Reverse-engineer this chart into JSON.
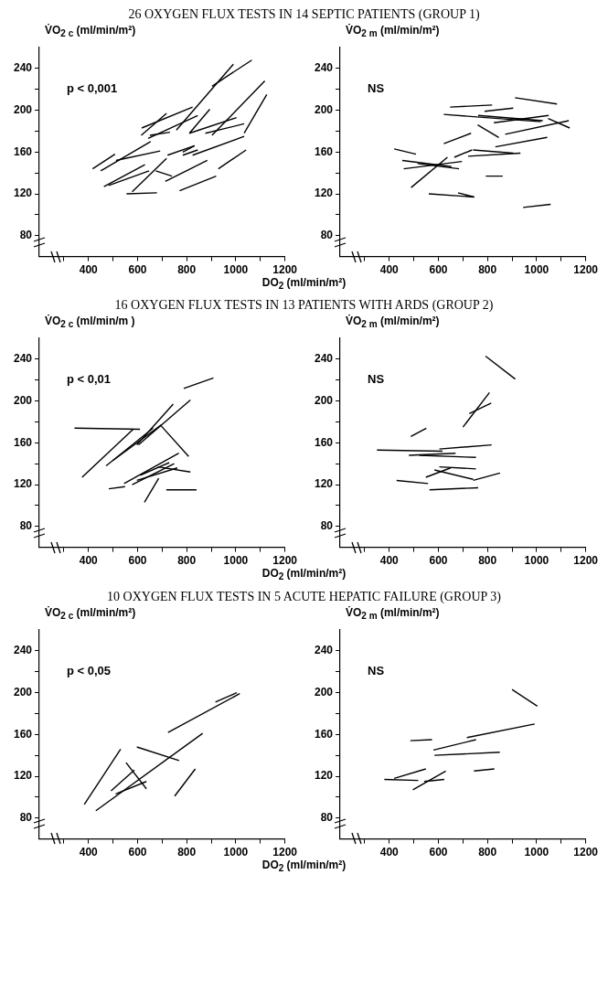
{
  "chart_data": [
    {
      "type": "line",
      "title": "26 OXYGEN FLUX TESTS IN 14 SEPTIC PATIENTS (GROUP 1)",
      "xlabel": "DO$_{2}$ (ml/min/m²)",
      "ylabel": "V̇O$_{2 c}$ (ml/min/m²)",
      "annotations": [
        "p < 0,001"
      ],
      "xlim": [
        200,
        1200
      ],
      "ylim": [
        60,
        260
      ],
      "xticks": [
        {
          "value": 300,
          "label": null
        },
        400,
        {
          "value": 500,
          "label": null
        },
        600,
        {
          "value": 700,
          "label": null
        },
        800,
        {
          "value": 900,
          "label": null
        },
        1000,
        {
          "value": 1100,
          "label": null
        },
        1200
      ],
      "yticks": [
        80,
        {
          "value": 100,
          "label": null
        },
        120,
        {
          "value": 140,
          "label": null
        },
        160,
        {
          "value": 180,
          "label": null
        },
        200,
        {
          "value": 220,
          "label": null
        },
        240
      ],
      "grid": false,
      "marker": "none",
      "series": [
        {
          "color": "#000000",
          "x": [
            417,
            508
          ],
          "values": [
            144,
            158
          ]
        },
        {
          "color": "#000000",
          "x": [
            450,
            653
          ],
          "values": [
            142,
            170
          ]
        },
        {
          "color": "#000000",
          "x": [
            512,
            692
          ],
          "values": [
            152,
            161
          ]
        },
        {
          "color": "#000000",
          "x": [
            463,
            630
          ],
          "values": [
            127,
            148
          ]
        },
        {
          "color": "#000000",
          "x": [
            482,
            647
          ],
          "values": [
            128,
            142
          ]
        },
        {
          "color": "#000000",
          "x": [
            555,
            679
          ],
          "values": [
            120,
            121
          ]
        },
        {
          "color": "#000000",
          "x": [
            578,
            718
          ],
          "values": [
            122,
            154
          ]
        },
        {
          "color": "#000000",
          "x": [
            674,
            740
          ],
          "values": [
            142,
            137
          ]
        },
        {
          "color": "#000000",
          "x": [
            713,
            884
          ],
          "values": [
            132,
            152
          ]
        },
        {
          "color": "#000000",
          "x": [
            771,
            920
          ],
          "values": [
            123,
            137
          ]
        },
        {
          "color": "#000000",
          "x": [
            929,
            1042
          ],
          "values": [
            144,
            162
          ]
        },
        {
          "color": "#000000",
          "x": [
            722,
            832
          ],
          "values": [
            157,
            166
          ]
        },
        {
          "color": "#000000",
          "x": [
            784,
            845
          ],
          "values": [
            157,
            162
          ]
        },
        {
          "color": "#000000",
          "x": [
            824,
            1034
          ],
          "values": [
            157,
            175
          ]
        },
        {
          "color": "#000000",
          "x": [
            615,
            718
          ],
          "values": [
            176,
            197
          ]
        },
        {
          "color": "#000000",
          "x": [
            617,
            824
          ],
          "values": [
            183,
            203
          ]
        },
        {
          "color": "#000000",
          "x": [
            650,
            732
          ],
          "values": [
            176,
            179
          ]
        },
        {
          "color": "#000000",
          "x": [
            643,
            845
          ],
          "values": [
            173,
            195
          ]
        },
        {
          "color": "#000000",
          "x": [
            758,
            990
          ],
          "values": [
            181,
            244
          ]
        },
        {
          "color": "#000000",
          "x": [
            903,
            1065
          ],
          "values": [
            223,
            248
          ]
        },
        {
          "color": "#000000",
          "x": [
            811,
            894
          ],
          "values": [
            178,
            201
          ]
        },
        {
          "color": "#000000",
          "x": [
            811,
            1003
          ],
          "values": [
            178,
            193
          ]
        },
        {
          "color": "#000000",
          "x": [
            903,
            1118
          ],
          "values": [
            176,
            228
          ]
        },
        {
          "color": "#000000",
          "x": [
            876,
            1034
          ],
          "values": [
            178,
            187
          ]
        },
        {
          "color": "#000000",
          "x": [
            1034,
            1126
          ],
          "values": [
            178,
            215
          ]
        },
        {
          "color": "#000000",
          "x": [
            784,
            832
          ],
          "values": [
            160,
            166
          ]
        }
      ]
    },
    {
      "type": "line",
      "ylabel": "V̇O$_{2 m}$ (ml/min/m²)",
      "annotations": [
        "NS"
      ],
      "xlim": [
        200,
        1200
      ],
      "ylim": [
        60,
        260
      ],
      "xticks": [
        {
          "value": 300,
          "label": null
        },
        400,
        {
          "value": 500,
          "label": null
        },
        600,
        {
          "value": 700,
          "label": null
        },
        800,
        {
          "value": 900,
          "label": null
        },
        1000,
        {
          "value": 1100,
          "label": null
        },
        1200
      ],
      "yticks": [
        80,
        {
          "value": 100,
          "label": null
        },
        120,
        {
          "value": 140,
          "label": null
        },
        160,
        {
          "value": 180,
          "label": null
        },
        200,
        {
          "value": 220,
          "label": null
        },
        240
      ],
      "grid": false,
      "marker": "none",
      "series": [
        {
          "color": "#000000",
          "x": [
            420,
            509
          ],
          "values": [
            163,
            158
          ]
        },
        {
          "color": "#000000",
          "x": [
            453,
            653
          ],
          "values": [
            152,
            146
          ]
        },
        {
          "color": "#000000",
          "x": [
            459,
            696
          ],
          "values": [
            144,
            151
          ]
        },
        {
          "color": "#000000",
          "x": [
            489,
            637
          ],
          "values": [
            126,
            155
          ]
        },
        {
          "color": "#000000",
          "x": [
            516,
            684
          ],
          "values": [
            149,
            144
          ]
        },
        {
          "color": "#000000",
          "x": [
            561,
            745
          ],
          "values": [
            120,
            117
          ]
        },
        {
          "color": "#000000",
          "x": [
            680,
            746
          ],
          "values": [
            121,
            117
          ]
        },
        {
          "color": "#000000",
          "x": [
            622,
            733
          ],
          "values": [
            168,
            178
          ]
        },
        {
          "color": "#000000",
          "x": [
            665,
            737
          ],
          "values": [
            155,
            162
          ]
        },
        {
          "color": "#000000",
          "x": [
            721,
            934
          ],
          "values": [
            156,
            159
          ]
        },
        {
          "color": "#000000",
          "x": [
            741,
            905
          ],
          "values": [
            162,
            159
          ]
        },
        {
          "color": "#000000",
          "x": [
            793,
            862
          ],
          "values": [
            137,
            137
          ]
        },
        {
          "color": "#000000",
          "x": [
            760,
            846
          ],
          "values": [
            186,
            174
          ]
        },
        {
          "color": "#000000",
          "x": [
            832,
            1043
          ],
          "values": [
            165,
            174
          ]
        },
        {
          "color": "#000000",
          "x": [
            872,
            1131
          ],
          "values": [
            177,
            190
          ]
        },
        {
          "color": "#000000",
          "x": [
            622,
            1017
          ],
          "values": [
            196,
            189
          ]
        },
        {
          "color": "#000000",
          "x": [
            762,
            1025
          ],
          "values": [
            195,
            190
          ]
        },
        {
          "color": "#000000",
          "x": [
            826,
            1049
          ],
          "values": [
            188,
            195
          ]
        },
        {
          "color": "#000000",
          "x": [
            648,
            819
          ],
          "values": [
            203,
            205
          ]
        },
        {
          "color": "#000000",
          "x": [
            788,
            905
          ],
          "values": [
            199,
            202
          ]
        },
        {
          "color": "#000000",
          "x": [
            912,
            1083
          ],
          "values": [
            212,
            206
          ]
        },
        {
          "color": "#000000",
          "x": [
            1047,
            1135
          ],
          "values": [
            192,
            183
          ]
        },
        {
          "color": "#000000",
          "x": [
            945,
            1057
          ],
          "values": [
            107,
            110
          ]
        }
      ]
    },
    {
      "type": "line",
      "title": "16 OXYGEN FLUX TESTS IN 13 PATIENTS WITH ARDS (GROUP 2)",
      "xlabel": "DO$_{2}$ (ml/min/m²)",
      "ylabel": "V̇O$_{2 c}$ (ml/min/m )",
      "annotations": [
        "p < 0,01"
      ],
      "xlim": [
        200,
        1200
      ],
      "ylim": [
        60,
        260
      ],
      "xticks": [
        {
          "value": 300,
          "label": null
        },
        400,
        {
          "value": 500,
          "label": null
        },
        600,
        {
          "value": 700,
          "label": null
        },
        800,
        {
          "value": 900,
          "label": null
        },
        1000,
        {
          "value": 1100,
          "label": null
        },
        1200
      ],
      "yticks": [
        80,
        {
          "value": 100,
          "label": null
        },
        120,
        {
          "value": 140,
          "label": null
        },
        160,
        {
          "value": 180,
          "label": null
        },
        200,
        {
          "value": 220,
          "label": null
        },
        240
      ],
      "grid": false,
      "marker": "none",
      "series": [
        {
          "color": "#000000",
          "x": [
            343,
            610
          ],
          "values": [
            174,
            173
          ]
        },
        {
          "color": "#000000",
          "x": [
            374,
            582
          ],
          "values": [
            127,
            173
          ]
        },
        {
          "color": "#000000",
          "x": [
            472,
            663
          ],
          "values": [
            138,
            174
          ]
        },
        {
          "color": "#000000",
          "x": [
            499,
            696
          ],
          "values": [
            143,
            177
          ]
        },
        {
          "color": "#000000",
          "x": [
            597,
            745
          ],
          "values": [
            158,
            197
          ]
        },
        {
          "color": "#000000",
          "x": [
            604,
            815
          ],
          "values": [
            158,
            201
          ]
        },
        {
          "color": "#000000",
          "x": [
            693,
            808
          ],
          "values": [
            177,
            147
          ]
        },
        {
          "color": "#000000",
          "x": [
            788,
            909
          ],
          "values": [
            212,
            222
          ]
        },
        {
          "color": "#000000",
          "x": [
            483,
            549
          ],
          "values": [
            116,
            118
          ]
        },
        {
          "color": "#000000",
          "x": [
            545,
            768
          ],
          "values": [
            121,
            150
          ]
        },
        {
          "color": "#000000",
          "x": [
            578,
            749
          ],
          "values": [
            120,
            140
          ]
        },
        {
          "color": "#000000",
          "x": [
            597,
            762
          ],
          "values": [
            124,
            136
          ]
        },
        {
          "color": "#000000",
          "x": [
            683,
            815
          ],
          "values": [
            137,
            132
          ]
        },
        {
          "color": "#000000",
          "x": [
            628,
            686
          ],
          "values": [
            103,
            126
          ]
        },
        {
          "color": "#000000",
          "x": [
            717,
            840
          ],
          "values": [
            115,
            115
          ]
        },
        {
          "color": "#000000",
          "x": [
            611,
            729
          ],
          "values": [
            129,
            141
          ]
        }
      ]
    },
    {
      "type": "line",
      "ylabel": "V̇O$_{2 m}$ (ml/min/m²)",
      "annotations": [
        "NS"
      ],
      "xlim": [
        200,
        1200
      ],
      "ylim": [
        60,
        260
      ],
      "xticks": [
        {
          "value": 300,
          "label": null
        },
        400,
        {
          "value": 500,
          "label": null
        },
        600,
        {
          "value": 700,
          "label": null
        },
        800,
        {
          "value": 900,
          "label": null
        },
        1000,
        {
          "value": 1100,
          "label": null
        },
        1200
      ],
      "yticks": [
        80,
        {
          "value": 100,
          "label": null
        },
        120,
        {
          "value": 140,
          "label": null
        },
        160,
        {
          "value": 180,
          "label": null
        },
        200,
        {
          "value": 220,
          "label": null
        },
        240
      ],
      "grid": false,
      "marker": "none",
      "series": [
        {
          "color": "#000000",
          "x": [
            792,
            913
          ],
          "values": [
            243,
            221
          ]
        },
        {
          "color": "#000000",
          "x": [
            700,
            808
          ],
          "values": [
            175,
            208
          ]
        },
        {
          "color": "#000000",
          "x": [
            726,
            815
          ],
          "values": [
            188,
            198
          ]
        },
        {
          "color": "#000000",
          "x": [
            488,
            551
          ],
          "values": [
            166,
            174
          ]
        },
        {
          "color": "#000000",
          "x": [
            350,
            617
          ],
          "values": [
            153,
            152
          ]
        },
        {
          "color": "#000000",
          "x": [
            604,
            817
          ],
          "values": [
            154,
            158
          ]
        },
        {
          "color": "#000000",
          "x": [
            480,
            670
          ],
          "values": [
            148,
            150
          ]
        },
        {
          "color": "#000000",
          "x": [
            522,
            753
          ],
          "values": [
            148,
            146
          ]
        },
        {
          "color": "#000000",
          "x": [
            430,
            558
          ],
          "values": [
            124,
            121
          ]
        },
        {
          "color": "#000000",
          "x": [
            549,
            650
          ],
          "values": [
            127,
            136
          ]
        },
        {
          "color": "#000000",
          "x": [
            604,
            753
          ],
          "values": [
            137,
            135
          ]
        },
        {
          "color": "#000000",
          "x": [
            584,
            742
          ],
          "values": [
            134,
            125
          ]
        },
        {
          "color": "#000000",
          "x": [
            742,
            851
          ],
          "values": [
            124,
            131
          ]
        },
        {
          "color": "#000000",
          "x": [
            564,
            762
          ],
          "values": [
            115,
            117
          ]
        }
      ]
    },
    {
      "type": "line",
      "title": "10 OXYGEN FLUX TESTS IN 5 ACUTE HEPATIC FAILURE (GROUP 3)",
      "xlabel": "DO$_{2}$ (ml/min/m²)",
      "ylabel": "V̇O$_{2 c}$ (ml/min/m²)",
      "annotations": [
        "p < 0,05"
      ],
      "xlim": [
        200,
        1200
      ],
      "ylim": [
        60,
        260
      ],
      "xticks": [
        {
          "value": 300,
          "label": null
        },
        400,
        {
          "value": 500,
          "label": null
        },
        600,
        {
          "value": 700,
          "label": null
        },
        800,
        {
          "value": 900,
          "label": null
        },
        1000,
        {
          "value": 1100,
          "label": null
        },
        1200
      ],
      "yticks": [
        80,
        {
          "value": 100,
          "label": null
        },
        120,
        {
          "value": 140,
          "label": null
        },
        160,
        {
          "value": 180,
          "label": null
        },
        200,
        {
          "value": 220,
          "label": null
        },
        240
      ],
      "grid": false,
      "marker": "none",
      "series": [
        {
          "color": "#000000",
          "x": [
            383,
            531
          ],
          "values": [
            93,
            146
          ]
        },
        {
          "color": "#000000",
          "x": [
            430,
            865
          ],
          "values": [
            87,
            161
          ]
        },
        {
          "color": "#000000",
          "x": [
            492,
            587
          ],
          "values": [
            106,
            126
          ]
        },
        {
          "color": "#000000",
          "x": [
            553,
            636
          ],
          "values": [
            133,
            108
          ]
        },
        {
          "color": "#000000",
          "x": [
            597,
            769
          ],
          "values": [
            148,
            135
          ]
        },
        {
          "color": "#000000",
          "x": [
            724,
            1016
          ],
          "values": [
            162,
            199
          ]
        },
        {
          "color": "#000000",
          "x": [
            917,
            1004
          ],
          "values": [
            191,
            200
          ]
        },
        {
          "color": "#000000",
          "x": [
            751,
            835
          ],
          "values": [
            101,
            127
          ]
        },
        {
          "color": "#000000",
          "x": [
            511,
            636
          ],
          "values": [
            103,
            115
          ]
        }
      ]
    },
    {
      "type": "line",
      "ylabel": "V̇O$_{2 m}$ (ml/min/m²)",
      "annotations": [
        "NS"
      ],
      "xlim": [
        200,
        1200
      ],
      "ylim": [
        60,
        260
      ],
      "xticks": [
        {
          "value": 300,
          "label": null
        },
        400,
        {
          "value": 500,
          "label": null
        },
        600,
        {
          "value": 700,
          "label": null
        },
        800,
        {
          "value": 900,
          "label": null
        },
        1000,
        {
          "value": 1100,
          "label": null
        },
        1200
      ],
      "yticks": [
        80,
        {
          "value": 100,
          "label": null
        },
        120,
        {
          "value": 140,
          "label": null
        },
        160,
        {
          "value": 180,
          "label": null
        },
        200,
        {
          "value": 220,
          "label": null
        },
        240
      ],
      "grid": false,
      "marker": "none",
      "series": [
        {
          "color": "#000000",
          "x": [
            900,
            1003
          ],
          "values": [
            203,
            187
          ]
        },
        {
          "color": "#000000",
          "x": [
            716,
            992
          ],
          "values": [
            157,
            170
          ]
        },
        {
          "color": "#000000",
          "x": [
            580,
            753
          ],
          "values": [
            145,
            155
          ]
        },
        {
          "color": "#000000",
          "x": [
            584,
            850
          ],
          "values": [
            140,
            143
          ]
        },
        {
          "color": "#000000",
          "x": [
            486,
            574
          ],
          "values": [
            154,
            155
          ]
        },
        {
          "color": "#000000",
          "x": [
            380,
            518
          ],
          "values": [
            117,
            116
          ]
        },
        {
          "color": "#000000",
          "x": [
            420,
            549
          ],
          "values": [
            118,
            127
          ]
        },
        {
          "color": "#000000",
          "x": [
            496,
            630
          ],
          "values": [
            107,
            125
          ]
        },
        {
          "color": "#000000",
          "x": [
            542,
            624
          ],
          "values": [
            115,
            117
          ]
        },
        {
          "color": "#000000",
          "x": [
            745,
            828
          ],
          "values": [
            125,
            127
          ]
        }
      ]
    }
  ]
}
